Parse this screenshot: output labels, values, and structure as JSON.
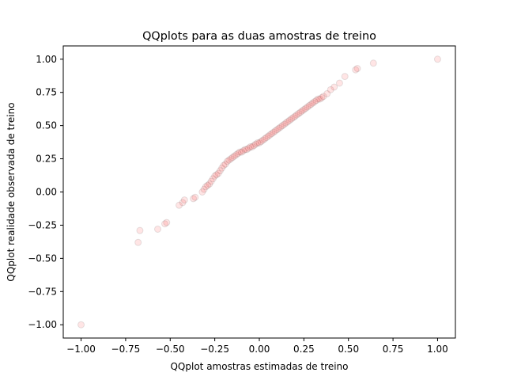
{
  "chart_data": {
    "type": "scatter",
    "title": "QQplots para as duas amostras  de treino",
    "xlabel": "QQplot amostras estimadas de treino",
    "ylabel": "QQplot realidade observada de treino",
    "xlim": [
      -1.1,
      1.1
    ],
    "ylim": [
      -1.1,
      1.1
    ],
    "x_ticks": [
      -1.0,
      -0.75,
      -0.5,
      -0.25,
      0.0,
      0.25,
      0.5,
      0.75,
      1.0
    ],
    "x_tick_labels": [
      "−1.00",
      "−0.75",
      "−0.50",
      "−0.25",
      "0.00",
      "0.25",
      "0.50",
      "0.75",
      "1.00"
    ],
    "y_ticks": [
      -1.0,
      -0.75,
      -0.5,
      -0.25,
      0.0,
      0.25,
      0.5,
      0.75,
      1.0
    ],
    "y_tick_labels": [
      "−1.00",
      "−0.75",
      "−0.50",
      "−0.25",
      "0.00",
      "0.25",
      "0.50",
      "0.75",
      "1.00"
    ],
    "grid": false,
    "marker_color": "#ff0000",
    "edge_color": "#000000",
    "marker_alpha": 0.1,
    "series": [
      {
        "points": [
          [
            -1.0,
            -1.0
          ],
          [
            -0.68,
            -0.38
          ],
          [
            -0.67,
            -0.29
          ],
          [
            -0.57,
            -0.28
          ],
          [
            -0.53,
            -0.24
          ],
          [
            -0.52,
            -0.23
          ],
          [
            -0.45,
            -0.1
          ],
          [
            -0.43,
            -0.08
          ],
          [
            -0.42,
            -0.06
          ],
          [
            -0.37,
            -0.05
          ],
          [
            -0.36,
            -0.04
          ],
          [
            -0.32,
            0.0
          ],
          [
            -0.31,
            0.02
          ],
          [
            -0.3,
            0.04
          ],
          [
            -0.29,
            0.05
          ],
          [
            -0.28,
            0.06
          ],
          [
            -0.27,
            0.08
          ],
          [
            -0.26,
            0.1
          ],
          [
            -0.25,
            0.12
          ],
          [
            -0.24,
            0.13
          ],
          [
            -0.23,
            0.14
          ],
          [
            -0.22,
            0.16
          ],
          [
            -0.21,
            0.18
          ],
          [
            -0.2,
            0.2
          ],
          [
            -0.19,
            0.21
          ],
          [
            -0.18,
            0.23
          ],
          [
            -0.17,
            0.24
          ],
          [
            -0.16,
            0.25
          ],
          [
            -0.15,
            0.26
          ],
          [
            -0.14,
            0.27
          ],
          [
            -0.13,
            0.28
          ],
          [
            -0.12,
            0.29
          ],
          [
            -0.11,
            0.3
          ],
          [
            -0.1,
            0.3
          ],
          [
            -0.09,
            0.31
          ],
          [
            -0.08,
            0.32
          ],
          [
            -0.07,
            0.32
          ],
          [
            -0.06,
            0.33
          ],
          [
            -0.05,
            0.34
          ],
          [
            -0.04,
            0.34
          ],
          [
            -0.03,
            0.35
          ],
          [
            -0.02,
            0.36
          ],
          [
            -0.01,
            0.37
          ],
          [
            0.0,
            0.37
          ],
          [
            0.01,
            0.38
          ],
          [
            0.02,
            0.39
          ],
          [
            0.03,
            0.4
          ],
          [
            0.04,
            0.41
          ],
          [
            0.05,
            0.42
          ],
          [
            0.06,
            0.43
          ],
          [
            0.07,
            0.44
          ],
          [
            0.08,
            0.45
          ],
          [
            0.09,
            0.46
          ],
          [
            0.1,
            0.47
          ],
          [
            0.11,
            0.48
          ],
          [
            0.12,
            0.49
          ],
          [
            0.13,
            0.5
          ],
          [
            0.14,
            0.51
          ],
          [
            0.15,
            0.52
          ],
          [
            0.16,
            0.53
          ],
          [
            0.17,
            0.54
          ],
          [
            0.18,
            0.55
          ],
          [
            0.19,
            0.56
          ],
          [
            0.2,
            0.57
          ],
          [
            0.21,
            0.58
          ],
          [
            0.22,
            0.59
          ],
          [
            0.23,
            0.6
          ],
          [
            0.24,
            0.61
          ],
          [
            0.25,
            0.62
          ],
          [
            0.26,
            0.63
          ],
          [
            0.27,
            0.64
          ],
          [
            0.28,
            0.65
          ],
          [
            0.29,
            0.66
          ],
          [
            0.3,
            0.67
          ],
          [
            0.31,
            0.68
          ],
          [
            0.32,
            0.69
          ],
          [
            0.33,
            0.7
          ],
          [
            0.34,
            0.7
          ],
          [
            0.35,
            0.71
          ],
          [
            0.36,
            0.72
          ],
          [
            0.38,
            0.74
          ],
          [
            0.4,
            0.77
          ],
          [
            0.42,
            0.79
          ],
          [
            0.45,
            0.82
          ],
          [
            0.48,
            0.87
          ],
          [
            0.54,
            0.92
          ],
          [
            0.55,
            0.93
          ],
          [
            0.64,
            0.97
          ],
          [
            1.0,
            1.0
          ]
        ]
      }
    ]
  }
}
